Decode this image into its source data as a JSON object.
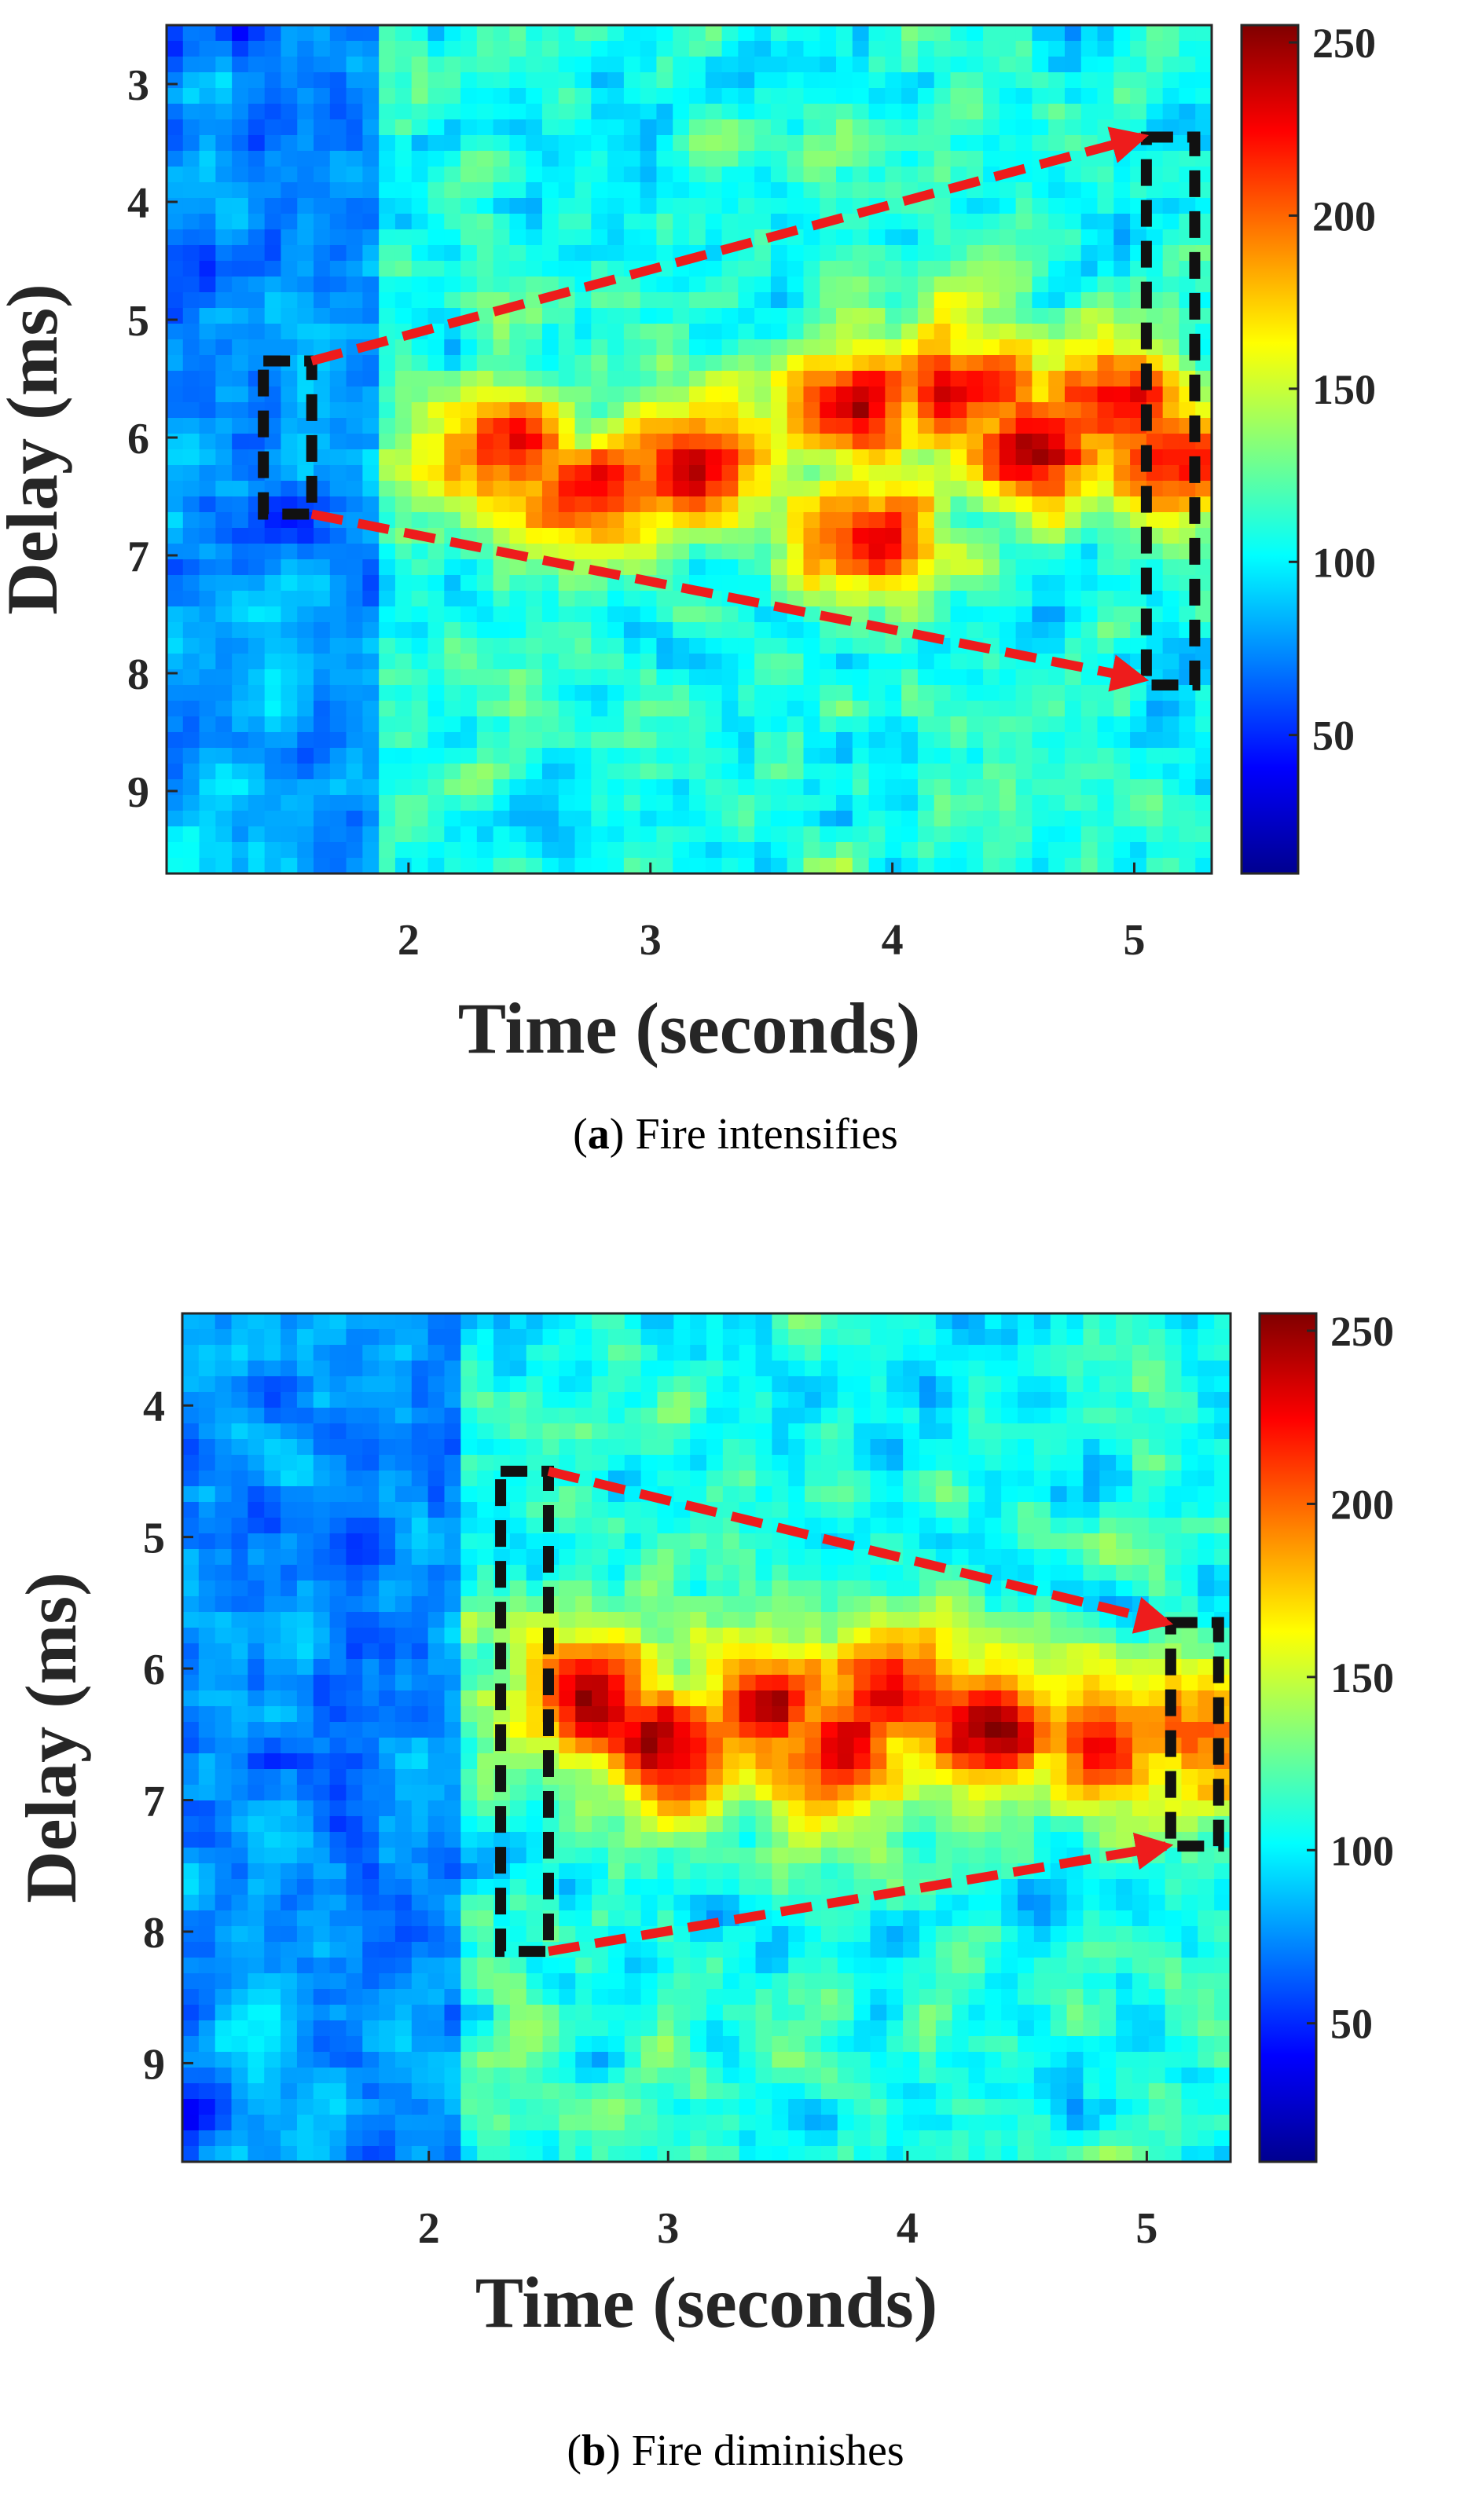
{
  "chart_data": [
    {
      "type": "heatmap",
      "caption_letter": "a",
      "caption_text": "Fire intensifies",
      "xlabel": "Time (seconds)",
      "ylabel": "Delay (ms)",
      "xlim": [
        1.0,
        5.32
      ],
      "ylim": [
        2.5,
        9.7
      ],
      "xticks": [
        2,
        3,
        4,
        5
      ],
      "yticks": [
        3,
        4,
        5,
        6,
        7,
        8,
        9
      ],
      "colorbar": {
        "range": [
          10,
          255
        ],
        "ticks": [
          50,
          100,
          150,
          200,
          250
        ],
        "colormap": "jet"
      },
      "hot_regions": [
        {
          "t": 2.4,
          "d": 6.1,
          "v": 235
        },
        {
          "t": 2.8,
          "d": 6.45,
          "v": 240
        },
        {
          "t": 3.2,
          "d": 6.2,
          "v": 245
        },
        {
          "t": 3.85,
          "d": 5.7,
          "v": 240
        },
        {
          "t": 3.9,
          "d": 6.8,
          "v": 235
        },
        {
          "t": 4.3,
          "d": 5.6,
          "v": 245
        },
        {
          "t": 4.6,
          "d": 6.1,
          "v": 255
        },
        {
          "t": 4.9,
          "d": 5.7,
          "v": 245
        },
        {
          "t": 5.2,
          "d": 6.2,
          "v": 230
        }
      ],
      "annotations": {
        "start_box": {
          "t_range": [
            1.4,
            1.6
          ],
          "d_range": [
            5.35,
            6.65
          ]
        },
        "end_box": {
          "t_range": [
            5.05,
            5.25
          ],
          "d_range": [
            3.45,
            8.1
          ]
        },
        "arrows": [
          {
            "from": [
              1.6,
              5.35
            ],
            "to": [
              5.03,
              3.45
            ]
          },
          {
            "from": [
              1.6,
              6.65
            ],
            "to": [
              5.03,
              8.05
            ]
          }
        ],
        "box_color": "#111111",
        "arrow_color": "#ee1c1c"
      }
    },
    {
      "type": "heatmap",
      "caption_letter": "b",
      "caption_text": "Fire diminishes",
      "xlabel": "Time (seconds)",
      "ylabel": "Delay (ms)",
      "xlim": [
        0.97,
        5.35
      ],
      "ylim": [
        3.3,
        9.75
      ],
      "xticks": [
        2,
        3,
        4,
        5
      ],
      "yticks": [
        4,
        5,
        6,
        7,
        8,
        9
      ],
      "colorbar": {
        "range": [
          10,
          255
        ],
        "ticks": [
          50,
          100,
          150,
          200,
          250
        ],
        "colormap": "jet"
      },
      "hot_regions": [
        {
          "t": 2.7,
          "d": 6.2,
          "v": 250
        },
        {
          "t": 3.0,
          "d": 6.6,
          "v": 250
        },
        {
          "t": 3.4,
          "d": 6.3,
          "v": 245
        },
        {
          "t": 3.7,
          "d": 6.6,
          "v": 250
        },
        {
          "t": 4.0,
          "d": 6.2,
          "v": 245
        },
        {
          "t": 4.35,
          "d": 6.5,
          "v": 250
        },
        {
          "t": 4.8,
          "d": 6.6,
          "v": 235
        },
        {
          "t": 5.2,
          "d": 6.5,
          "v": 215
        }
      ],
      "annotations": {
        "start_box": {
          "t_range": [
            2.3,
            2.5
          ],
          "d_range": [
            4.5,
            8.15
          ]
        },
        "end_box": {
          "t_range": [
            5.1,
            5.3
          ],
          "d_range": [
            5.65,
            7.35
          ]
        },
        "arrows": [
          {
            "from": [
              2.5,
              4.5
            ],
            "to": [
              5.08,
              5.65
            ]
          },
          {
            "from": [
              2.5,
              8.15
            ],
            "to": [
              5.08,
              7.35
            ]
          }
        ],
        "box_color": "#111111",
        "arrow_color": "#ee1c1c"
      }
    }
  ]
}
